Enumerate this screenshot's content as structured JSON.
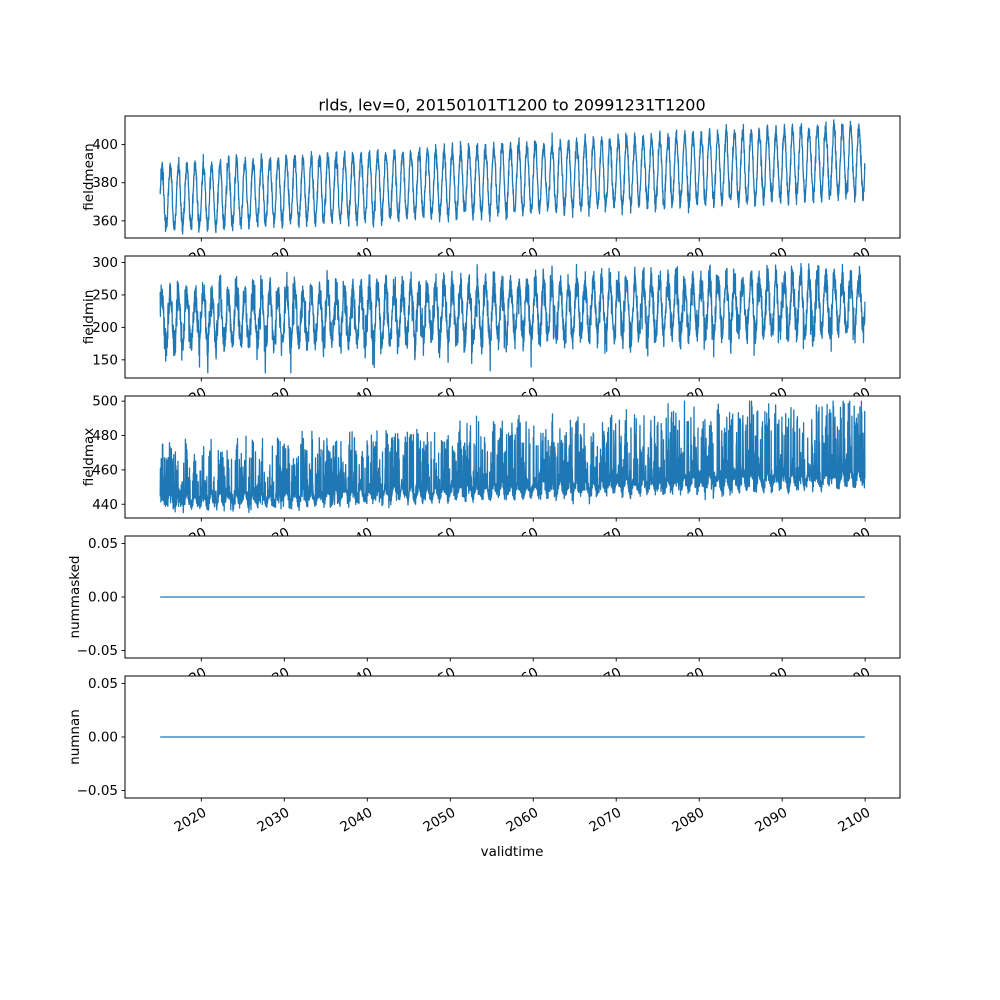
{
  "figure": {
    "background": "#ffffff",
    "axis_color": "#000000",
    "line_color": "#1f77b4"
  },
  "chart_data": {
    "type": "line",
    "title": "rlds, lev=0, 20150101T1200 to 20991231T1200",
    "xlabel": "validtime",
    "grid": false,
    "legend": "none",
    "x_start": 2015.04,
    "x_end": 2099.96,
    "xlim": [
      2010.8,
      2104.2
    ],
    "xticks": [
      2020,
      2030,
      2040,
      2050,
      2060,
      2070,
      2080,
      2090,
      2100
    ],
    "xticklabels": [
      "2020",
      "2030",
      "2040",
      "2050",
      "2060",
      "2070",
      "2080",
      "2090",
      "2100"
    ],
    "x_tick_rotation_deg": 30,
    "subplots": [
      {
        "ylabel": "fieldmean",
        "ylim": [
          351,
          415
        ],
        "yticks": [
          360,
          380,
          400
        ],
        "yticklabels": [
          "360",
          "380",
          "400"
        ],
        "series": {
          "kind": "seasonal",
          "summary": "annual cycle of ~±17 around a mean rising from ~372 in 2015 to ~392 in 2100; seasonal range ~355-390 early, ~373-412 late",
          "t_start": 2015.04,
          "t_end": 2099.96,
          "dt": 0.0208,
          "base": [
            372,
            392
          ],
          "amplitude": [
            16,
            18
          ],
          "noise": 2.1,
          "spike_prob": 0,
          "spike_range": [
            0,
            0
          ],
          "spike_growth": 0,
          "direction": 1,
          "clamp": [
            353,
            413
          ],
          "seed": 42
        }
      },
      {
        "ylabel": "fieldmin",
        "ylim": [
          122,
          310
        ],
        "yticks": [
          150,
          200,
          250,
          300
        ],
        "yticklabels": [
          "150",
          "200",
          "250",
          "300"
        ],
        "series": {
          "kind": "seasonal",
          "summary": "dense noisy annual cycle mostly 160-280 early rising to 185-300 late, with occasional deep downward spikes to ~130",
          "t_start": 2015.04,
          "t_end": 2099.96,
          "dt": 0.0208,
          "base": [
            212,
            238
          ],
          "amplitude": [
            40,
            42
          ],
          "noise": 12,
          "spike_prob": 0.012,
          "spike_range": [
            15,
            55
          ],
          "spike_growth": 0,
          "direction": -1,
          "clamp": [
            130,
            302
          ],
          "seed": 7
        }
      },
      {
        "ylabel": "fieldmax",
        "ylim": [
          432,
          503
        ],
        "yticks": [
          440,
          460,
          480,
          500
        ],
        "yticklabels": [
          "440",
          "460",
          "480",
          "500"
        ],
        "series": {
          "kind": "seasonal",
          "summary": "base band rising from ~440-450 in 2015 to ~455-465 in 2100 with upward spikes growing from ~470 early to ~500 by 2100",
          "t_start": 2015.04,
          "t_end": 2099.96,
          "dt": 0.0208,
          "base": [
            442,
            456
          ],
          "amplitude": [
            3,
            4
          ],
          "noise": 2.2,
          "spike_prob": 0.28,
          "spike_range": [
            2,
            30
          ],
          "spike_growth": 0.55,
          "direction": 1,
          "clamp": [
            435,
            500
          ],
          "seed": 13
        }
      },
      {
        "ylabel": "nummasked",
        "ylim": [
          -0.057,
          0.057
        ],
        "yticks": [
          0.05,
          0,
          -0.05
        ],
        "yticklabels": [
          "0.05",
          "0.00",
          "−0.05"
        ],
        "series": {
          "kind": "constant",
          "summary": "constant 0 for the whole period",
          "t_start": 2015.04,
          "t_end": 2099.96,
          "value": 0
        }
      },
      {
        "ylabel": "numnan",
        "ylim": [
          -0.057,
          0.057
        ],
        "yticks": [
          0.05,
          0,
          -0.05
        ],
        "yticklabels": [
          "0.05",
          "0.00",
          "−0.05"
        ],
        "series": {
          "kind": "constant",
          "summary": "constant 0 for the whole period",
          "t_start": 2015.04,
          "t_end": 2099.96,
          "value": 0
        }
      }
    ]
  }
}
